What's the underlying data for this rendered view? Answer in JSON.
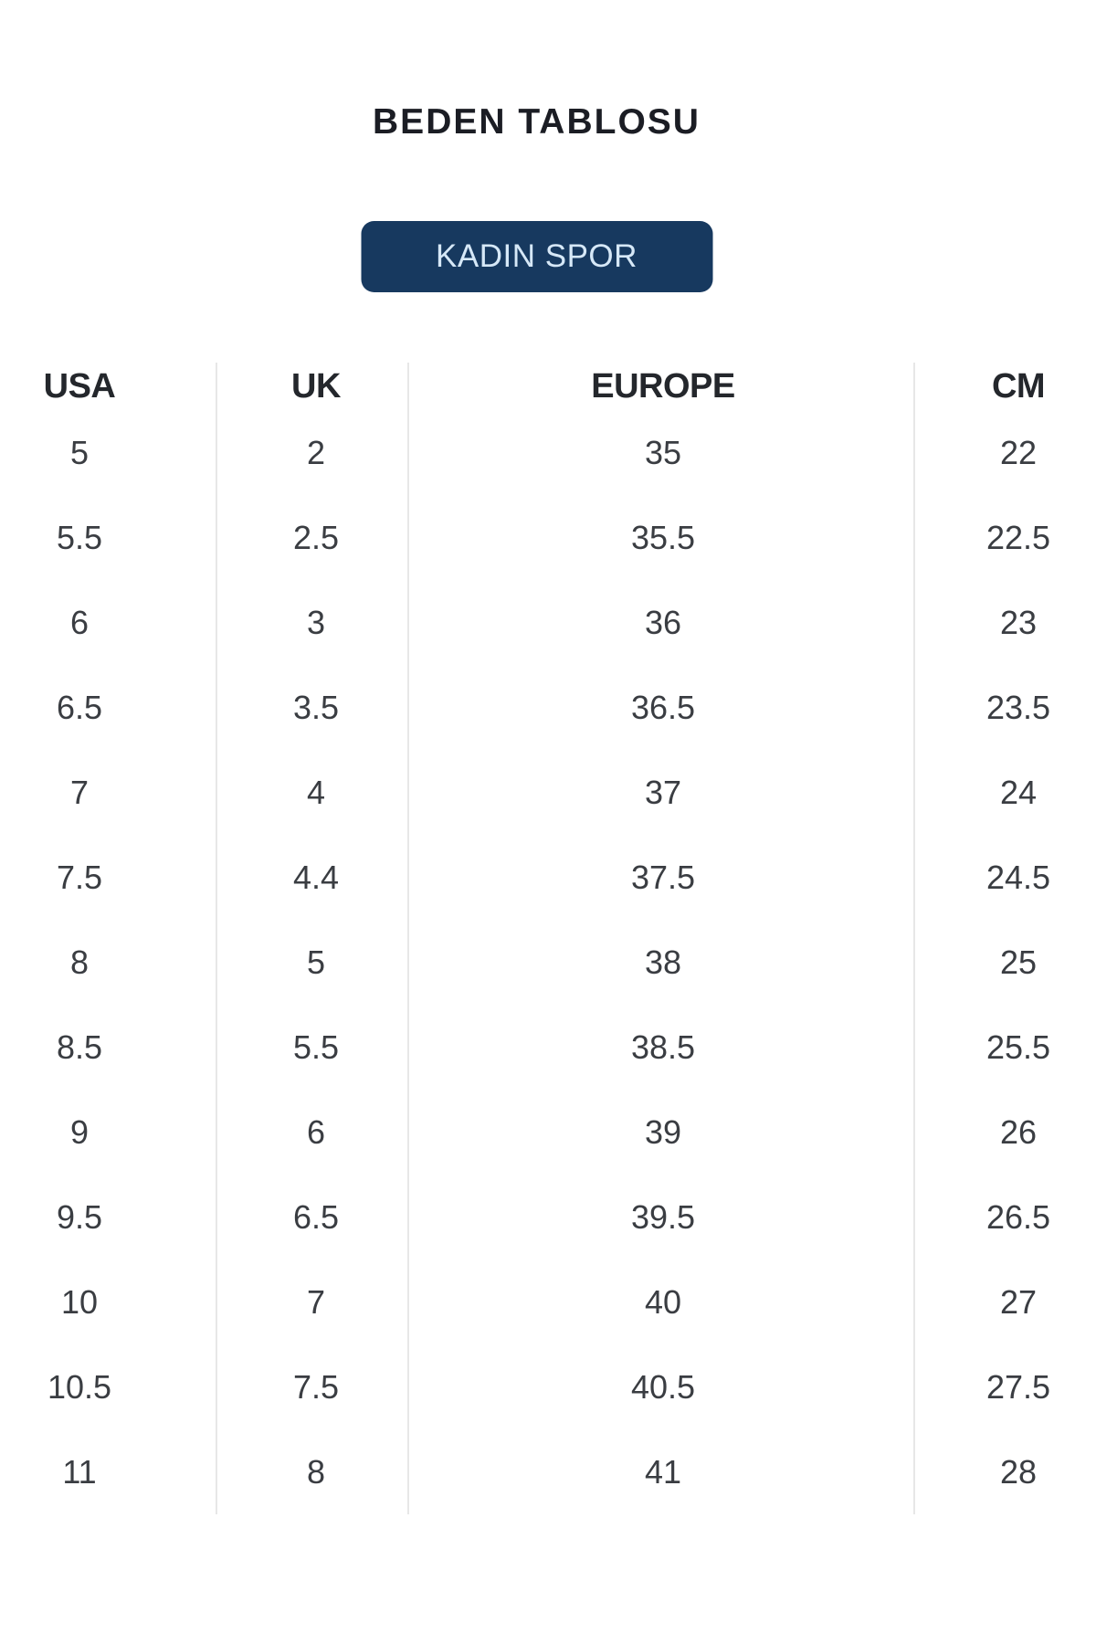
{
  "page": {
    "title": "BEDEN TABLOSU",
    "background": "#ffffff"
  },
  "category_button": {
    "label": "KADIN SPOR",
    "background": "#17395f",
    "text_color": "#d6e8f7"
  },
  "size_table": {
    "columns": [
      "USA",
      "UK",
      "EUROPE",
      "CM"
    ],
    "divider_color": "#e7e7e7",
    "rows": [
      [
        "5",
        "2",
        "35",
        "22"
      ],
      [
        "5.5",
        "2.5",
        "35.5",
        "22.5"
      ],
      [
        "6",
        "3",
        "36",
        "23"
      ],
      [
        "6.5",
        "3.5",
        "36.5",
        "23.5"
      ],
      [
        "7",
        "4",
        "37",
        "24"
      ],
      [
        "7.5",
        "4.4",
        "37.5",
        "24.5"
      ],
      [
        "8",
        "5",
        "38",
        "25"
      ],
      [
        "8.5",
        "5.5",
        "38.5",
        "25.5"
      ],
      [
        "9",
        "6",
        "39",
        "26"
      ],
      [
        "9.5",
        "6.5",
        "39.5",
        "26.5"
      ],
      [
        "10",
        "7",
        "40",
        "27"
      ],
      [
        "10.5",
        "7.5",
        "40.5",
        "27.5"
      ],
      [
        "11",
        "8",
        "41",
        "28"
      ]
    ]
  }
}
